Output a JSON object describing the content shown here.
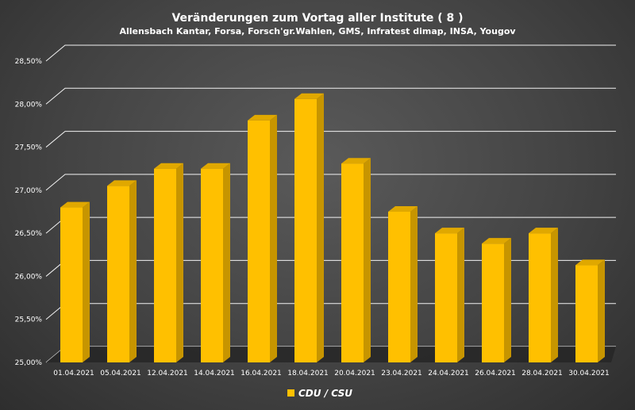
{
  "chart_data": {
    "type": "bar",
    "title": "Veränderungen zum Vortag aller Institute ( 8 )",
    "subtitle": "Allensbach Kantar, Forsa, Forsch'gr.Wahlen, GMS, Infratest dimap, INSA, Yougov",
    "categories": [
      "01.04.2021",
      "05.04.2021",
      "12.04.2021",
      "14.04.2021",
      "16.04.2021",
      "18.04.2021",
      "20.04.2021",
      "23.04.2021",
      "24.04.2021",
      "26.04.2021",
      "28.04.2021",
      "30.04.2021"
    ],
    "series": [
      {
        "name": "CDU / CSU",
        "color": "#FFC000",
        "values": [
          26.8,
          27.05,
          27.25,
          27.25,
          27.81,
          28.06,
          27.31,
          26.75,
          26.5,
          26.38,
          26.5,
          26.13
        ]
      }
    ],
    "yticks": [
      "25,00%",
      "25,50%",
      "26,00%",
      "26,50%",
      "27,00%",
      "27,50%",
      "28,00%",
      "28,50%"
    ],
    "ylim": [
      25.0,
      28.5
    ],
    "grid": true,
    "legend": "bottom"
  }
}
